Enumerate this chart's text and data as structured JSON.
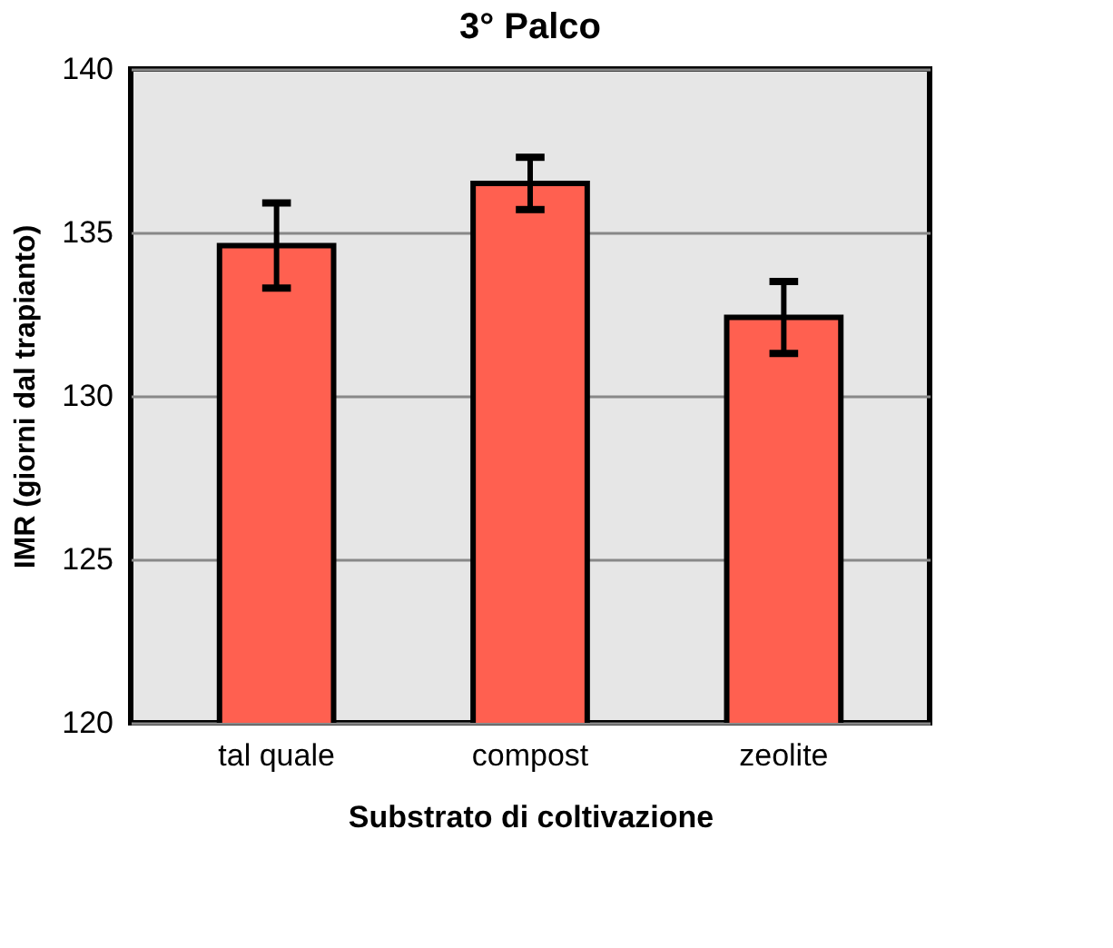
{
  "chart_data": {
    "type": "bar",
    "title": "3° Palco",
    "xlabel": "Substrato di coltivazione",
    "ylabel": "IMR (giorni dal trapianto)",
    "categories": [
      "tal quale",
      "compost",
      "zeolite"
    ],
    "values": [
      134.6,
      136.5,
      132.4
    ],
    "errors": [
      1.3,
      0.8,
      1.1
    ],
    "color": "#ff6050",
    "ylim": [
      120,
      140
    ],
    "yticks": [
      120,
      125,
      130,
      135,
      140
    ],
    "grid": "y"
  }
}
